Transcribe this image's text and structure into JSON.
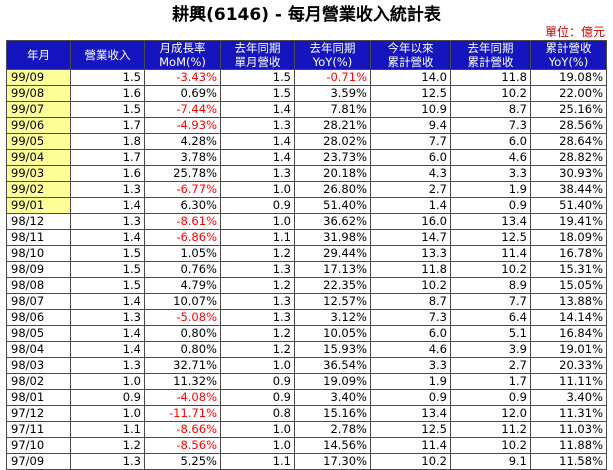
{
  "title": "耕興(6146) - 每月營業收入統計表",
  "unit_label": "單位：億元",
  "headers": [
    {
      "line1": "年月",
      "line2": ""
    },
    {
      "line1": "營業收入",
      "line2": ""
    },
    {
      "line1": "月成長率",
      "line2": "MoM(%)"
    },
    {
      "line1": "去年同期",
      "line2": "單月營收"
    },
    {
      "line1": "去年同期",
      "line2": "YoY(%)"
    },
    {
      "line1": "今年以來",
      "line2": "累計營收"
    },
    {
      "line1": "去年同期",
      "line2": "累計營收"
    },
    {
      "line1": "累計營收",
      "line2": "YoY(%)"
    }
  ],
  "rows": [
    {
      "month": "99/09",
      "highlight": true,
      "revenue": "1.5",
      "mom": "-3.43%",
      "mom_neg": true,
      "ly_month": "1.5",
      "yoy": "-0.71%",
      "yoy_neg": true,
      "ytd": "14.0",
      "ly_ytd": "11.8",
      "ytd_yoy": "19.08%"
    },
    {
      "month": "99/08",
      "highlight": true,
      "revenue": "1.6",
      "mom": "0.69%",
      "mom_neg": false,
      "ly_month": "1.5",
      "yoy": "3.59%",
      "yoy_neg": false,
      "ytd": "12.5",
      "ly_ytd": "10.2",
      "ytd_yoy": "22.00%"
    },
    {
      "month": "99/07",
      "highlight": true,
      "revenue": "1.5",
      "mom": "-7.44%",
      "mom_neg": true,
      "ly_month": "1.4",
      "yoy": "7.81%",
      "yoy_neg": false,
      "ytd": "10.9",
      "ly_ytd": "8.7",
      "ytd_yoy": "25.16%"
    },
    {
      "month": "99/06",
      "highlight": true,
      "revenue": "1.7",
      "mom": "-4.93%",
      "mom_neg": true,
      "ly_month": "1.3",
      "yoy": "28.21%",
      "yoy_neg": false,
      "ytd": "9.4",
      "ly_ytd": "7.3",
      "ytd_yoy": "28.56%"
    },
    {
      "month": "99/05",
      "highlight": true,
      "revenue": "1.8",
      "mom": "4.28%",
      "mom_neg": false,
      "ly_month": "1.4",
      "yoy": "28.02%",
      "yoy_neg": false,
      "ytd": "7.7",
      "ly_ytd": "6.0",
      "ytd_yoy": "28.64%"
    },
    {
      "month": "99/04",
      "highlight": true,
      "revenue": "1.7",
      "mom": "3.78%",
      "mom_neg": false,
      "ly_month": "1.4",
      "yoy": "23.73%",
      "yoy_neg": false,
      "ytd": "6.0",
      "ly_ytd": "4.6",
      "ytd_yoy": "28.82%"
    },
    {
      "month": "99/03",
      "highlight": true,
      "revenue": "1.6",
      "mom": "25.78%",
      "mom_neg": false,
      "ly_month": "1.3",
      "yoy": "20.18%",
      "yoy_neg": false,
      "ytd": "4.3",
      "ly_ytd": "3.3",
      "ytd_yoy": "30.93%"
    },
    {
      "month": "99/02",
      "highlight": true,
      "revenue": "1.3",
      "mom": "-6.77%",
      "mom_neg": true,
      "ly_month": "1.0",
      "yoy": "26.80%",
      "yoy_neg": false,
      "ytd": "2.7",
      "ly_ytd": "1.9",
      "ytd_yoy": "38.44%"
    },
    {
      "month": "99/01",
      "highlight": true,
      "revenue": "1.4",
      "mom": "6.30%",
      "mom_neg": false,
      "ly_month": "0.9",
      "yoy": "51.40%",
      "yoy_neg": false,
      "ytd": "1.4",
      "ly_ytd": "0.9",
      "ytd_yoy": "51.40%"
    },
    {
      "month": "98/12",
      "highlight": false,
      "revenue": "1.3",
      "mom": "-8.61%",
      "mom_neg": true,
      "ly_month": "1.0",
      "yoy": "36.62%",
      "yoy_neg": false,
      "ytd": "16.0",
      "ly_ytd": "13.4",
      "ytd_yoy": "19.41%"
    },
    {
      "month": "98/11",
      "highlight": false,
      "revenue": "1.4",
      "mom": "-6.86%",
      "mom_neg": true,
      "ly_month": "1.1",
      "yoy": "31.98%",
      "yoy_neg": false,
      "ytd": "14.7",
      "ly_ytd": "12.5",
      "ytd_yoy": "18.09%"
    },
    {
      "month": "98/10",
      "highlight": false,
      "revenue": "1.5",
      "mom": "1.05%",
      "mom_neg": false,
      "ly_month": "1.2",
      "yoy": "29.44%",
      "yoy_neg": false,
      "ytd": "13.3",
      "ly_ytd": "11.4",
      "ytd_yoy": "16.78%"
    },
    {
      "month": "98/09",
      "highlight": false,
      "revenue": "1.5",
      "mom": "0.76%",
      "mom_neg": false,
      "ly_month": "1.3",
      "yoy": "17.13%",
      "yoy_neg": false,
      "ytd": "11.8",
      "ly_ytd": "10.2",
      "ytd_yoy": "15.31%"
    },
    {
      "month": "98/08",
      "highlight": false,
      "revenue": "1.5",
      "mom": "4.79%",
      "mom_neg": false,
      "ly_month": "1.2",
      "yoy": "22.35%",
      "yoy_neg": false,
      "ytd": "10.2",
      "ly_ytd": "8.9",
      "ytd_yoy": "15.05%"
    },
    {
      "month": "98/07",
      "highlight": false,
      "revenue": "1.4",
      "mom": "10.07%",
      "mom_neg": false,
      "ly_month": "1.3",
      "yoy": "12.57%",
      "yoy_neg": false,
      "ytd": "8.7",
      "ly_ytd": "7.7",
      "ytd_yoy": "13.88%"
    },
    {
      "month": "98/06",
      "highlight": false,
      "revenue": "1.3",
      "mom": "-5.08%",
      "mom_neg": true,
      "ly_month": "1.3",
      "yoy": "3.12%",
      "yoy_neg": false,
      "ytd": "7.3",
      "ly_ytd": "6.4",
      "ytd_yoy": "14.14%"
    },
    {
      "month": "98/05",
      "highlight": false,
      "revenue": "1.4",
      "mom": "0.80%",
      "mom_neg": false,
      "ly_month": "1.2",
      "yoy": "10.05%",
      "yoy_neg": false,
      "ytd": "6.0",
      "ly_ytd": "5.1",
      "ytd_yoy": "16.84%"
    },
    {
      "month": "98/04",
      "highlight": false,
      "revenue": "1.4",
      "mom": "0.80%",
      "mom_neg": false,
      "ly_month": "1.2",
      "yoy": "15.93%",
      "yoy_neg": false,
      "ytd": "4.6",
      "ly_ytd": "3.9",
      "ytd_yoy": "19.01%"
    },
    {
      "month": "98/03",
      "highlight": false,
      "revenue": "1.3",
      "mom": "32.71%",
      "mom_neg": false,
      "ly_month": "1.0",
      "yoy": "36.54%",
      "yoy_neg": false,
      "ytd": "3.3",
      "ly_ytd": "2.7",
      "ytd_yoy": "20.33%"
    },
    {
      "month": "98/02",
      "highlight": false,
      "revenue": "1.0",
      "mom": "11.32%",
      "mom_neg": false,
      "ly_month": "0.9",
      "yoy": "19.09%",
      "yoy_neg": false,
      "ytd": "1.9",
      "ly_ytd": "1.7",
      "ytd_yoy": "11.11%"
    },
    {
      "month": "98/01",
      "highlight": false,
      "revenue": "0.9",
      "mom": "-4.08%",
      "mom_neg": true,
      "ly_month": "0.9",
      "yoy": "3.40%",
      "yoy_neg": false,
      "ytd": "0.9",
      "ly_ytd": "0.9",
      "ytd_yoy": "3.40%"
    },
    {
      "month": "97/12",
      "highlight": false,
      "revenue": "1.0",
      "mom": "-11.71%",
      "mom_neg": true,
      "ly_month": "0.8",
      "yoy": "15.16%",
      "yoy_neg": false,
      "ytd": "13.4",
      "ly_ytd": "12.0",
      "ytd_yoy": "11.31%"
    },
    {
      "month": "97/11",
      "highlight": false,
      "revenue": "1.1",
      "mom": "-8.66%",
      "mom_neg": true,
      "ly_month": "1.0",
      "yoy": "2.78%",
      "yoy_neg": false,
      "ytd": "12.5",
      "ly_ytd": "11.2",
      "ytd_yoy": "11.03%"
    },
    {
      "month": "97/10",
      "highlight": false,
      "revenue": "1.2",
      "mom": "-8.56%",
      "mom_neg": true,
      "ly_month": "1.0",
      "yoy": "14.56%",
      "yoy_neg": false,
      "ytd": "11.4",
      "ly_ytd": "10.2",
      "ytd_yoy": "11.88%"
    },
    {
      "month": "97/09",
      "highlight": false,
      "revenue": "1.3",
      "mom": "5.25%",
      "mom_neg": false,
      "ly_month": "1.1",
      "yoy": "17.30%",
      "yoy_neg": false,
      "ytd": "10.2",
      "ly_ytd": "9.1",
      "ytd_yoy": "11.58%"
    }
  ],
  "colors": {
    "header_bg": "#1515bf",
    "header_text": "#ffffff",
    "highlight_bg": "#ffff99",
    "negative_text": "#ff0000",
    "unit_text": "#cc0000"
  }
}
